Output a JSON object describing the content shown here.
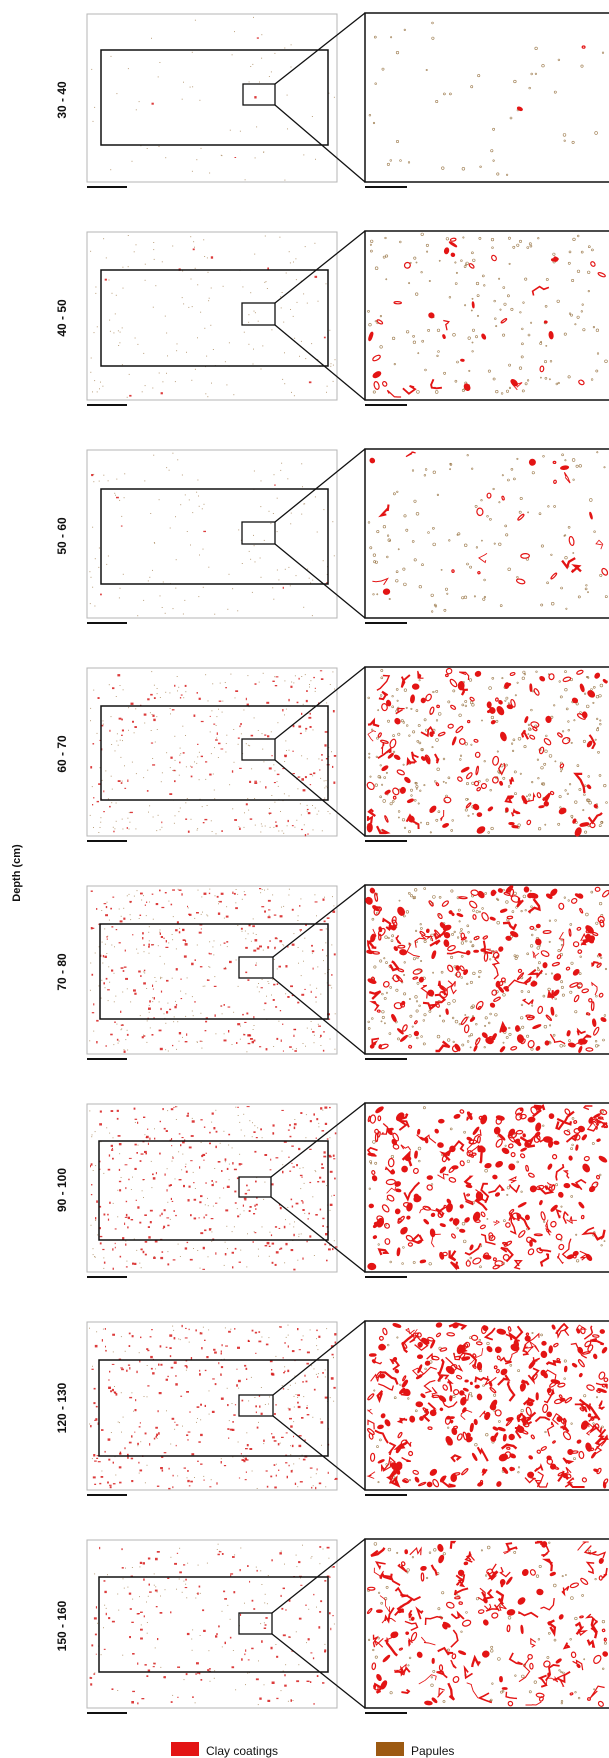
{
  "figure": {
    "y_axis_label": "Depth (cm)",
    "rows": [
      {
        "depth": "30 - 40"
      },
      {
        "depth": "40 - 50"
      },
      {
        "depth": "50 - 60"
      },
      {
        "depth": "60 - 70"
      },
      {
        "depth": "70 - 80"
      },
      {
        "depth": "90 - 100"
      },
      {
        "depth": "120 - 130"
      },
      {
        "depth": "150 - 160"
      }
    ]
  },
  "legend": {
    "items": [
      {
        "label": "Clay coatings",
        "color": "#e31414"
      },
      {
        "label": "Papules",
        "color": "#9c5a12"
      }
    ]
  }
}
